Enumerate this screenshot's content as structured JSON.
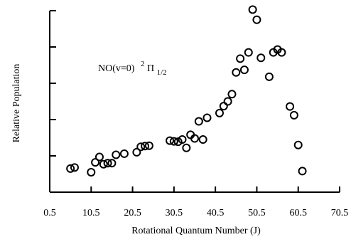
{
  "chart_data": {
    "type": "scatter",
    "xlabel": "Rotational Quantum Number (J)",
    "ylabel": "Relative Population",
    "annotation": {
      "prefix": "NO(v=0)",
      "sup": "2",
      "greek": "Π",
      "sub": "1/2"
    },
    "xlim": [
      0.5,
      70.5
    ],
    "ylim": [
      0,
      5
    ],
    "x_ticks": [
      0.5,
      10.5,
      20.5,
      30.5,
      40.5,
      50.5,
      60.5,
      70.5
    ],
    "x_tick_labels": [
      "0.5",
      "10.5",
      "20.5",
      "30.5",
      "40.5",
      "50.5",
      "60.5",
      "70.5"
    ],
    "y_ticks": [
      0,
      1,
      2,
      3,
      4,
      5
    ],
    "grid": false,
    "series": [
      {
        "x": [
          5.5,
          6.5,
          10.5,
          11.5,
          12.5,
          13.5,
          14.5,
          15.5,
          16.5,
          18.5,
          21.5,
          22.5,
          23.5,
          24.5,
          29.5,
          30.5,
          31.5,
          32.5,
          33.5,
          34.5,
          35.5,
          36.5,
          37.5,
          38.5,
          41.5,
          42.5,
          43.5,
          44.5,
          45.5,
          46.5,
          47.5,
          48.5,
          49.5,
          50.5,
          51.5,
          53.5,
          54.5,
          55.5,
          56.5,
          58.5,
          59.5,
          60.5,
          61.5
        ],
        "y": [
          0.65,
          0.68,
          0.55,
          0.82,
          0.97,
          0.77,
          0.8,
          0.8,
          1.03,
          1.06,
          1.1,
          1.25,
          1.27,
          1.28,
          1.42,
          1.4,
          1.39,
          1.45,
          1.22,
          1.58,
          1.48,
          1.95,
          1.45,
          2.05,
          2.18,
          2.37,
          2.5,
          2.7,
          3.3,
          3.68,
          3.37,
          3.85,
          5.03,
          4.75,
          3.7,
          3.18,
          3.85,
          3.93,
          3.85,
          2.36,
          2.12,
          1.3,
          0.58
        ]
      }
    ]
  }
}
